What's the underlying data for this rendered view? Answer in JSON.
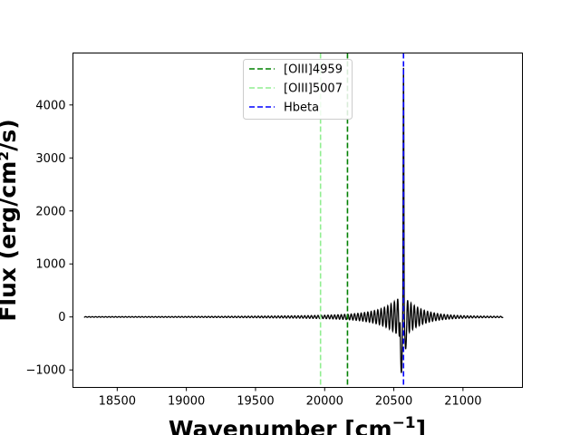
{
  "chart_data": {
    "type": "line",
    "title": "",
    "xlabel": "Wavenumber [cm",
    "xlabel_sup": "−1",
    "xlabel_close": "]",
    "ylabel": "Flux (erg/cm²/s)",
    "xlim": [
      18180,
      21430
    ],
    "ylim": [
      -1330,
      4980
    ],
    "xticks": [
      18500,
      19000,
      19500,
      20000,
      20500,
      21000
    ],
    "yticks": [
      -1000,
      0,
      1000,
      2000,
      3000,
      4000
    ],
    "xtick_labels": [
      "18500",
      "19000",
      "19500",
      "20000",
      "20500",
      "21000"
    ],
    "ytick_labels": [
      "−1000",
      "0",
      "1000",
      "2000",
      "3000",
      "4000"
    ],
    "grid": false,
    "legend_position": "upper center",
    "spectrum": {
      "name": "",
      "color": "#000000",
      "x_range": [
        18260,
        21290
      ],
      "line_center": 20570,
      "peak": 4700,
      "trough": -1050,
      "baseline": 0
    },
    "vlines": [
      {
        "name": "[OIII]4959",
        "x": 20165,
        "color": "#008000",
        "style": "dashed"
      },
      {
        "name": "[OIII]5007",
        "x": 19970,
        "color": "#90ee90",
        "style": "dashed"
      },
      {
        "name": "Hbeta",
        "x": 20570,
        "color": "#0000ff",
        "style": "dashed"
      }
    ]
  }
}
